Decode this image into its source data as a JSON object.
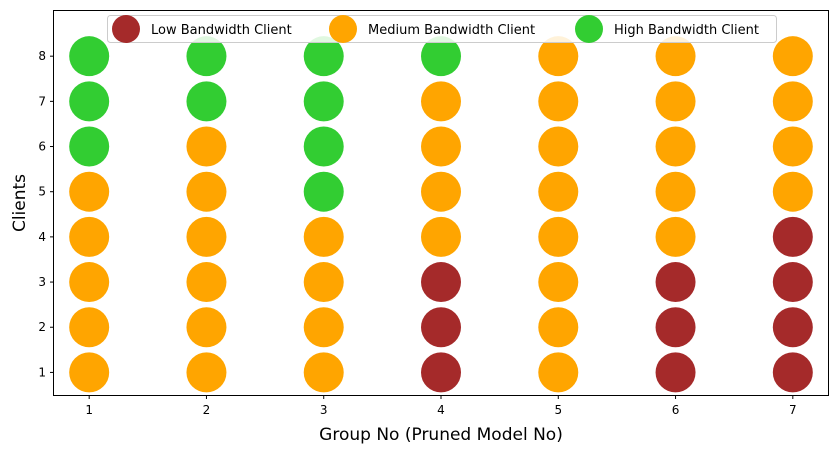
{
  "chart_data": {
    "type": "scatter",
    "xlabel": "Group No (Pruned Model No)",
    "ylabel": "Clients",
    "x_ticks": [
      1,
      2,
      3,
      4,
      5,
      6,
      7
    ],
    "y_ticks": [
      1,
      2,
      3,
      4,
      5,
      6,
      7,
      8
    ],
    "xlim": [
      0.7,
      7.3
    ],
    "ylim": [
      0.5,
      9.0
    ],
    "grid": false,
    "legend_position": "top-center",
    "categories": {
      "low": {
        "name": "Low Bandwidth Client",
        "color": "#a52a2a"
      },
      "medium": {
        "name": "Medium Bandwidth Client",
        "color": "#ffa500"
      },
      "high": {
        "name": "High Bandwidth Client",
        "color": "#32cd32"
      }
    },
    "groups": [
      {
        "group": 1,
        "clients": [
          "medium",
          "medium",
          "medium",
          "medium",
          "medium",
          "high",
          "high",
          "high"
        ]
      },
      {
        "group": 2,
        "clients": [
          "medium",
          "medium",
          "medium",
          "medium",
          "medium",
          "medium",
          "high",
          "high"
        ]
      },
      {
        "group": 3,
        "clients": [
          "medium",
          "medium",
          "medium",
          "medium",
          "high",
          "high",
          "high",
          "high"
        ]
      },
      {
        "group": 4,
        "clients": [
          "low",
          "low",
          "low",
          "medium",
          "medium",
          "medium",
          "medium",
          "high"
        ]
      },
      {
        "group": 5,
        "clients": [
          "medium",
          "medium",
          "medium",
          "medium",
          "medium",
          "medium",
          "medium",
          "medium"
        ]
      },
      {
        "group": 6,
        "clients": [
          "low",
          "low",
          "low",
          "medium",
          "medium",
          "medium",
          "medium",
          "medium"
        ]
      },
      {
        "group": 7,
        "clients": [
          "low",
          "low",
          "low",
          "low",
          "medium",
          "medium",
          "medium",
          "medium"
        ]
      }
    ]
  }
}
